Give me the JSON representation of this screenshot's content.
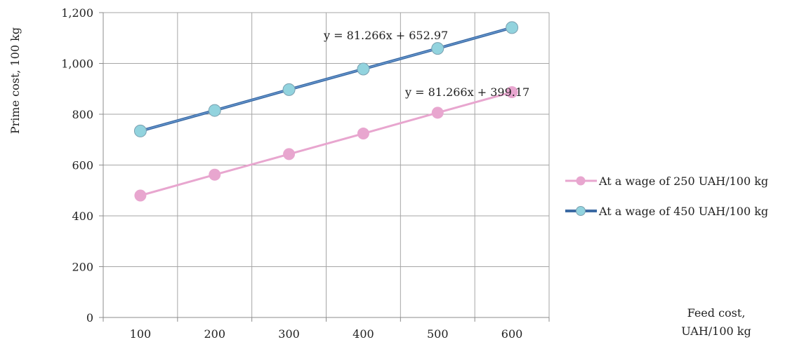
{
  "chart_data": {
    "type": "line",
    "x": [
      100,
      200,
      300,
      400,
      500,
      600
    ],
    "x_tick_labels": [
      "100",
      "200",
      "300",
      "400",
      "500",
      "600"
    ],
    "y_tick_labels": [
      "0",
      "200",
      "400",
      "600",
      "800",
      "1,000",
      "1,200"
    ],
    "ylim": [
      0,
      1200
    ],
    "grid": true,
    "ylabel": "Prime cost, 100 kg",
    "xlabel_line1": "Feed cost,",
    "xlabel_line2": "UAH/100 kg",
    "legend_position": "right",
    "series": [
      {
        "name": "At a wage of 250 UAH/100 kg",
        "values": [
          480,
          562,
          643,
          724,
          806,
          887
        ],
        "color": "#e8a6cf",
        "marker_color": "#e8a6cf",
        "trendline": "y = 81.266x + 399.17"
      },
      {
        "name": "At a wage of 450 UAH/100 kg",
        "values": [
          734,
          815,
          897,
          978,
          1059,
          1141
        ],
        "color": "#4f81bd",
        "marker_color": "#92d3de",
        "trendline": "y = 81.266x + 652.97"
      }
    ]
  }
}
